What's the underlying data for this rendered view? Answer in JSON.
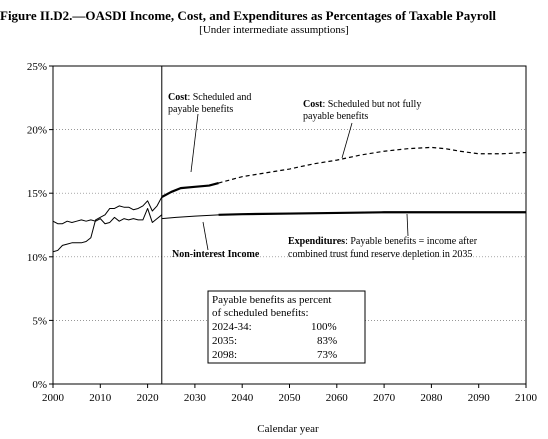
{
  "chart_data": {
    "type": "line",
    "title": "Figure II.D2.—OASDI Income, Cost, and Expenditures as Percentages of Taxable Payroll",
    "subtitle": "[Under intermediate assumptions]",
    "xlabel": "Calendar year",
    "ylabel": "",
    "xlim": [
      2000,
      2100
    ],
    "ylim": [
      0,
      25
    ],
    "x_ticks": [
      2000,
      2010,
      2020,
      2030,
      2040,
      2050,
      2060,
      2070,
      2080,
      2090,
      2100
    ],
    "x_tick_labels": [
      "2000",
      "2010",
      "2020",
      "2030",
      "2040",
      "2050",
      "2060",
      "2070",
      "2080",
      "2090",
      "2100"
    ],
    "y_ticks": [
      0,
      5,
      10,
      15,
      20,
      25
    ],
    "y_tick_labels": [
      "0%",
      "5%",
      "10%",
      "15%",
      "20%",
      "25%"
    ],
    "grid": "horizontal dotted",
    "vertical_marker_year": 2023,
    "series": [
      {
        "key": "cost_historical",
        "style": "solid-thin",
        "points": [
          [
            2000,
            10.4
          ],
          [
            2001,
            10.5
          ],
          [
            2002,
            10.9
          ],
          [
            2003,
            11.0
          ],
          [
            2004,
            11.1
          ],
          [
            2005,
            11.1
          ],
          [
            2006,
            11.1
          ],
          [
            2007,
            11.2
          ],
          [
            2008,
            11.5
          ],
          [
            2009,
            12.9
          ],
          [
            2010,
            13.1
          ],
          [
            2011,
            13.3
          ],
          [
            2012,
            13.8
          ],
          [
            2013,
            13.8
          ],
          [
            2014,
            14.0
          ],
          [
            2015,
            13.9
          ],
          [
            2016,
            13.9
          ],
          [
            2017,
            13.7
          ],
          [
            2018,
            13.8
          ],
          [
            2019,
            14.0
          ],
          [
            2020,
            14.4
          ],
          [
            2021,
            13.6
          ],
          [
            2022,
            14.0
          ],
          [
            2023,
            14.7
          ]
        ]
      },
      {
        "key": "income_historical",
        "style": "solid-thin",
        "points": [
          [
            2000,
            12.8
          ],
          [
            2001,
            12.6
          ],
          [
            2002,
            12.6
          ],
          [
            2003,
            12.8
          ],
          [
            2004,
            12.7
          ],
          [
            2005,
            12.8
          ],
          [
            2006,
            12.9
          ],
          [
            2007,
            12.8
          ],
          [
            2008,
            12.9
          ],
          [
            2009,
            12.8
          ],
          [
            2010,
            13.0
          ],
          [
            2011,
            12.6
          ],
          [
            2012,
            12.7
          ],
          [
            2013,
            13.1
          ],
          [
            2014,
            12.8
          ],
          [
            2015,
            13.0
          ],
          [
            2016,
            12.9
          ],
          [
            2017,
            13.0
          ],
          [
            2018,
            12.9
          ],
          [
            2019,
            12.9
          ],
          [
            2020,
            13.8
          ],
          [
            2021,
            12.7
          ],
          [
            2022,
            13.0
          ],
          [
            2023,
            13.3
          ]
        ]
      },
      {
        "key": "cost_scheduled_payable",
        "style": "solid-thick",
        "points": [
          [
            2023,
            14.7
          ],
          [
            2025,
            15.1
          ],
          [
            2027,
            15.4
          ],
          [
            2030,
            15.5
          ],
          [
            2033,
            15.6
          ],
          [
            2035,
            15.8
          ]
        ]
      },
      {
        "key": "cost_scheduled_not_payable",
        "style": "dashed",
        "points": [
          [
            2035,
            15.8
          ],
          [
            2040,
            16.3
          ],
          [
            2045,
            16.6
          ],
          [
            2050,
            16.9
          ],
          [
            2055,
            17.3
          ],
          [
            2060,
            17.6
          ],
          [
            2065,
            18.0
          ],
          [
            2070,
            18.3
          ],
          [
            2075,
            18.5
          ],
          [
            2080,
            18.6
          ],
          [
            2083,
            18.5
          ],
          [
            2086,
            18.3
          ],
          [
            2090,
            18.1
          ],
          [
            2095,
            18.1
          ],
          [
            2100,
            18.2
          ]
        ]
      },
      {
        "key": "income_projected",
        "style": "solid-thin",
        "points": [
          [
            2023,
            13.0
          ],
          [
            2026,
            13.1
          ],
          [
            2030,
            13.2
          ],
          [
            2035,
            13.3
          ]
        ]
      },
      {
        "key": "expenditures",
        "style": "solid-thick",
        "points": [
          [
            2035,
            13.3
          ],
          [
            2040,
            13.35
          ],
          [
            2050,
            13.4
          ],
          [
            2060,
            13.45
          ],
          [
            2070,
            13.5
          ],
          [
            2080,
            13.5
          ],
          [
            2090,
            13.5
          ],
          [
            2100,
            13.5
          ]
        ]
      }
    ],
    "annotations": {
      "cost_payable": {
        "bold": "Cost",
        "text_line1": ": Scheduled and",
        "text_line2": "payable benefits"
      },
      "cost_not_payable": {
        "bold": "Cost",
        "text_line1": ": Scheduled but not fully",
        "text_line2": "payable benefits"
      },
      "non_interest_income": "Non-interest Income",
      "expenditures": {
        "bold": "Expenditures",
        "text_line1": ": Payable benefits = income after",
        "text_line2": "combined trust fund reserve depletion in 2035"
      }
    },
    "table": {
      "title_line1": "Payable benefits as percent",
      "title_line2": "of scheduled benefits:",
      "rows": [
        {
          "period": "2024-34:",
          "value": "100%"
        },
        {
          "period": "2035:",
          "value": "83%"
        },
        {
          "period": "2098:",
          "value": "73%"
        }
      ]
    }
  }
}
